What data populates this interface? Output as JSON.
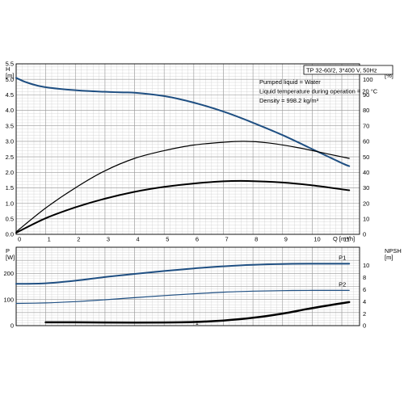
{
  "colors": {
    "blue": "#1f4f82",
    "black": "#000000",
    "grid": "#c8c8c8"
  },
  "info": {
    "model": "TP 32-60/2, 3*400 V, 50Hz",
    "liquid": "Pumped liquid = Water",
    "temperature": "Liquid temperature during operation = 20 °C",
    "density": "Density = 998.2 kg/m³"
  },
  "chart_data": [
    {
      "type": "line",
      "xlabel": "Q [m³/h]",
      "ylabel": "H\n[m]",
      "y2label": "eta\n[%]",
      "xlim": [
        0,
        11.6
      ],
      "ylim": [
        0,
        5.5
      ],
      "y2lim": [
        0,
        110
      ],
      "xticks": [
        0,
        1,
        2,
        3,
        4,
        5,
        6,
        7,
        8,
        9,
        10,
        11
      ],
      "yticks": [
        "0.0",
        "0.5",
        "1.0",
        "1.5",
        "2.0",
        "2.5",
        "3.0",
        "3.5",
        "4.0",
        "4.5",
        "5.0",
        "5.5"
      ],
      "y2ticks": [
        0,
        10,
        20,
        30,
        40,
        50,
        60,
        70,
        80,
        90,
        100
      ],
      "grid": true,
      "series": [
        {
          "axis": "left",
          "color": "#1f4f82",
          "width": 2,
          "x": [
            0,
            0.3,
            0.8,
            1.5,
            2.5,
            3.5,
            4.0,
            5.0,
            6.0,
            7.0,
            8.0,
            9.0,
            10.0,
            11.0,
            11.25
          ],
          "y": [
            5.05,
            4.92,
            4.78,
            4.69,
            4.62,
            4.58,
            4.57,
            4.46,
            4.25,
            3.96,
            3.6,
            3.2,
            2.75,
            2.3,
            2.2
          ]
        },
        {
          "axis": "left",
          "color": "#000000",
          "width": 1.2,
          "x": [
            0,
            1,
            2,
            3,
            4,
            5,
            6,
            7,
            7.7,
            8.5,
            9.5,
            10.5,
            11.25
          ],
          "y": [
            0.08,
            0.85,
            1.5,
            2.05,
            2.45,
            2.7,
            2.88,
            2.97,
            3.0,
            2.95,
            2.8,
            2.6,
            2.45
          ]
        },
        {
          "axis": "left",
          "color": "#000000",
          "width": 2,
          "x": [
            0,
            1,
            2,
            3,
            4,
            5,
            6,
            7,
            7.8,
            9,
            10,
            11.25
          ],
          "y": [
            0.05,
            0.52,
            0.87,
            1.15,
            1.37,
            1.53,
            1.64,
            1.71,
            1.72,
            1.67,
            1.58,
            1.42
          ]
        }
      ]
    },
    {
      "type": "line",
      "xlabel": "",
      "ylabel": "P\n[W]",
      "y2label": "NPSH\n[m]",
      "xlim": [
        0,
        11.6
      ],
      "ylim": [
        0,
        300
      ],
      "y2lim": [
        0,
        13
      ],
      "yticks": [
        0,
        100,
        200
      ],
      "y2ticks": [
        0,
        2,
        4,
        6,
        8,
        10
      ],
      "grid": true,
      "x_marker": "1",
      "series": [
        {
          "name": "P1",
          "axis": "left",
          "color": "#1f4f82",
          "width": 2,
          "x": [
            0,
            1,
            2,
            3,
            4,
            5,
            6,
            7,
            8,
            9,
            10,
            11.25
          ],
          "y": [
            160,
            162,
            172,
            186,
            198,
            209,
            219,
            227,
            233,
            236,
            237,
            237
          ]
        },
        {
          "name": "P2",
          "axis": "left",
          "color": "#1f4f82",
          "width": 1.2,
          "x": [
            0,
            1,
            2,
            3,
            4,
            5,
            6,
            7,
            8,
            9,
            10,
            11.25
          ],
          "y": [
            85,
            87,
            92,
            99,
            107,
            115,
            122,
            128,
            132,
            134,
            135,
            135
          ]
        },
        {
          "name": "",
          "axis": "right",
          "color": "#000000",
          "width": 2.5,
          "x": [
            1,
            2,
            3,
            4,
            5,
            6,
            7,
            8,
            9,
            10,
            11.25
          ],
          "y": [
            0.55,
            0.55,
            0.52,
            0.5,
            0.52,
            0.6,
            0.85,
            1.3,
            2.0,
            2.9,
            3.9
          ]
        }
      ]
    }
  ]
}
